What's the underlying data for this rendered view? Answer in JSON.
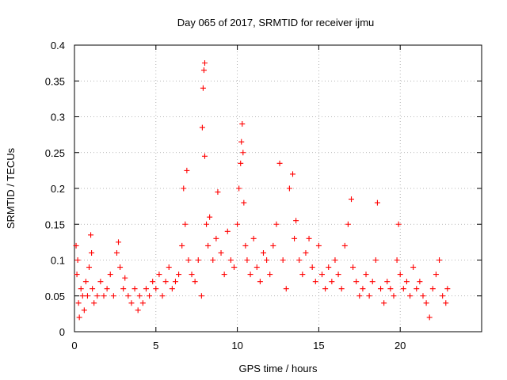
{
  "chart_data": {
    "type": "scatter",
    "title": "Day 065 of 2017, SRMTID for receiver ijmu",
    "xlabel": "GPS time / hours",
    "ylabel": "SRMTID / TECUs",
    "xlim": [
      0,
      25
    ],
    "ylim": [
      0,
      0.4
    ],
    "xticks": [
      0,
      5,
      10,
      15,
      20
    ],
    "xtick_labels": [
      "0",
      "5",
      "10",
      "15",
      "20"
    ],
    "yticks": [
      0,
      0.05,
      0.1,
      0.15,
      0.2,
      0.25,
      0.3,
      0.35,
      0.4
    ],
    "ytick_labels": [
      "0",
      "0.05",
      "0.1",
      "0.15",
      "0.2",
      "0.25",
      "0.3",
      "0.35",
      "0.4"
    ],
    "grid": true,
    "marker": "+",
    "color": "#ff0000",
    "series": [
      {
        "name": "SRMTID",
        "points": [
          [
            0.1,
            0.12
          ],
          [
            0.15,
            0.08
          ],
          [
            0.2,
            0.1
          ],
          [
            0.25,
            0.04
          ],
          [
            0.3,
            0.02
          ],
          [
            0.4,
            0.06
          ],
          [
            0.5,
            0.05
          ],
          [
            0.6,
            0.03
          ],
          [
            0.7,
            0.07
          ],
          [
            0.8,
            0.05
          ],
          [
            0.9,
            0.09
          ],
          [
            1.0,
            0.135
          ],
          [
            1.05,
            0.11
          ],
          [
            1.1,
            0.06
          ],
          [
            1.2,
            0.04
          ],
          [
            1.4,
            0.05
          ],
          [
            1.6,
            0.07
          ],
          [
            1.8,
            0.05
          ],
          [
            2.0,
            0.06
          ],
          [
            2.2,
            0.08
          ],
          [
            2.4,
            0.05
          ],
          [
            2.6,
            0.11
          ],
          [
            2.7,
            0.125
          ],
          [
            2.8,
            0.09
          ],
          [
            3.0,
            0.06
          ],
          [
            3.1,
            0.075
          ],
          [
            3.3,
            0.05
          ],
          [
            3.5,
            0.04
          ],
          [
            3.7,
            0.06
          ],
          [
            3.9,
            0.03
          ],
          [
            4.0,
            0.05
          ],
          [
            4.2,
            0.04
          ],
          [
            4.4,
            0.06
          ],
          [
            4.6,
            0.05
          ],
          [
            4.8,
            0.07
          ],
          [
            5.0,
            0.06
          ],
          [
            5.2,
            0.08
          ],
          [
            5.4,
            0.05
          ],
          [
            5.6,
            0.07
          ],
          [
            5.8,
            0.09
          ],
          [
            6.0,
            0.06
          ],
          [
            6.2,
            0.07
          ],
          [
            6.4,
            0.08
          ],
          [
            6.6,
            0.12
          ],
          [
            6.7,
            0.2
          ],
          [
            6.8,
            0.15
          ],
          [
            6.9,
            0.225
          ],
          [
            7.0,
            0.1
          ],
          [
            7.2,
            0.08
          ],
          [
            7.4,
            0.07
          ],
          [
            7.6,
            0.1
          ],
          [
            7.8,
            0.05
          ],
          [
            7.85,
            0.285
          ],
          [
            7.9,
            0.34
          ],
          [
            7.95,
            0.365
          ],
          [
            8.0,
            0.375
          ],
          [
            8.0,
            0.245
          ],
          [
            8.1,
            0.15
          ],
          [
            8.2,
            0.12
          ],
          [
            8.3,
            0.16
          ],
          [
            8.5,
            0.1
          ],
          [
            8.7,
            0.13
          ],
          [
            8.8,
            0.195
          ],
          [
            9.0,
            0.11
          ],
          [
            9.2,
            0.08
          ],
          [
            9.4,
            0.14
          ],
          [
            9.6,
            0.1
          ],
          [
            9.8,
            0.09
          ],
          [
            10.0,
            0.15
          ],
          [
            10.1,
            0.2
          ],
          [
            10.2,
            0.235
          ],
          [
            10.25,
            0.265
          ],
          [
            10.3,
            0.29
          ],
          [
            10.35,
            0.25
          ],
          [
            10.4,
            0.18
          ],
          [
            10.5,
            0.12
          ],
          [
            10.6,
            0.1
          ],
          [
            10.8,
            0.08
          ],
          [
            11.0,
            0.13
          ],
          [
            11.2,
            0.09
          ],
          [
            11.4,
            0.07
          ],
          [
            11.6,
            0.11
          ],
          [
            11.8,
            0.1
          ],
          [
            12.0,
            0.08
          ],
          [
            12.2,
            0.12
          ],
          [
            12.4,
            0.15
          ],
          [
            12.6,
            0.235
          ],
          [
            12.8,
            0.1
          ],
          [
            13.0,
            0.06
          ],
          [
            13.2,
            0.2
          ],
          [
            13.4,
            0.22
          ],
          [
            13.5,
            0.13
          ],
          [
            13.6,
            0.155
          ],
          [
            13.8,
            0.1
          ],
          [
            14.0,
            0.08
          ],
          [
            14.2,
            0.11
          ],
          [
            14.4,
            0.13
          ],
          [
            14.6,
            0.09
          ],
          [
            14.8,
            0.07
          ],
          [
            15.0,
            0.12
          ],
          [
            15.2,
            0.08
          ],
          [
            15.4,
            0.06
          ],
          [
            15.6,
            0.09
          ],
          [
            15.8,
            0.07
          ],
          [
            16.0,
            0.1
          ],
          [
            16.2,
            0.08
          ],
          [
            16.4,
            0.06
          ],
          [
            16.6,
            0.12
          ],
          [
            16.8,
            0.15
          ],
          [
            17.0,
            0.185
          ],
          [
            17.1,
            0.09
          ],
          [
            17.3,
            0.07
          ],
          [
            17.5,
            0.05
          ],
          [
            17.7,
            0.06
          ],
          [
            17.9,
            0.08
          ],
          [
            18.1,
            0.05
          ],
          [
            18.3,
            0.07
          ],
          [
            18.5,
            0.1
          ],
          [
            18.6,
            0.18
          ],
          [
            18.8,
            0.06
          ],
          [
            19.0,
            0.04
          ],
          [
            19.2,
            0.07
          ],
          [
            19.4,
            0.06
          ],
          [
            19.6,
            0.05
          ],
          [
            19.8,
            0.1
          ],
          [
            19.9,
            0.15
          ],
          [
            20.0,
            0.08
          ],
          [
            20.2,
            0.06
          ],
          [
            20.4,
            0.07
          ],
          [
            20.6,
            0.05
          ],
          [
            20.8,
            0.09
          ],
          [
            21.0,
            0.06
          ],
          [
            21.2,
            0.07
          ],
          [
            21.4,
            0.05
          ],
          [
            21.6,
            0.04
          ],
          [
            21.8,
            0.02
          ],
          [
            22.0,
            0.06
          ],
          [
            22.2,
            0.08
          ],
          [
            22.4,
            0.1
          ],
          [
            22.6,
            0.05
          ],
          [
            22.8,
            0.04
          ],
          [
            22.9,
            0.06
          ]
        ]
      }
    ]
  }
}
